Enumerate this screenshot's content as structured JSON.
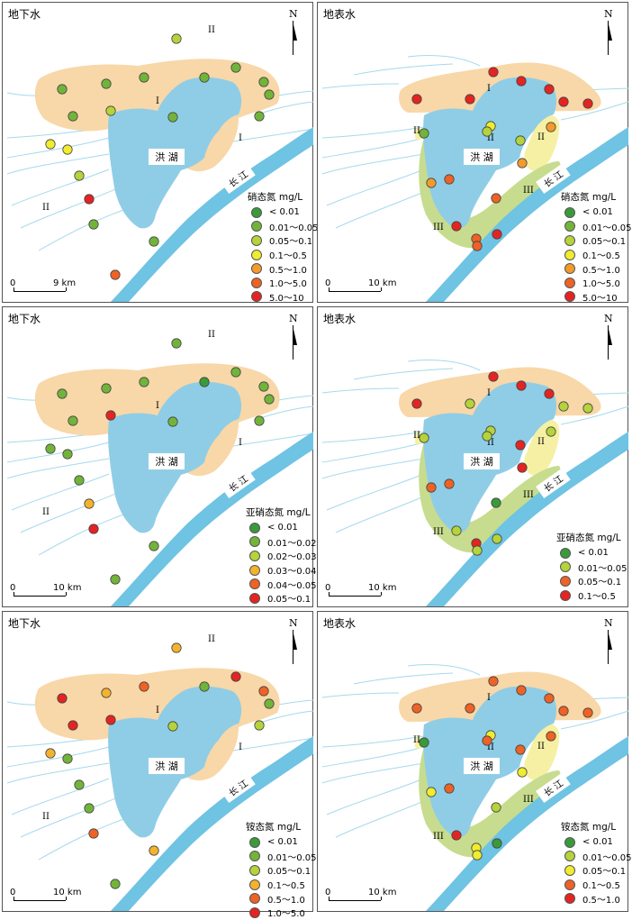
{
  "legend_sets": {
    "gw_nitrate": {
      "title": "硝态氮 mg/L",
      "items": [
        {
          "label": "< 0.01",
          "color": "#3a9a3a"
        },
        {
          "label": "0.01～0.05",
          "color": "#72b43a"
        },
        {
          "label": "0.05～0.1",
          "color": "#b5d33a"
        },
        {
          "label": "0.1～0.5",
          "color": "#f0ec2e"
        },
        {
          "label": "0.5～1.0",
          "color": "#f39a2c"
        },
        {
          "label": "1.0～5.0",
          "color": "#ee6225"
        },
        {
          "label": "5.0～10",
          "color": "#e32422"
        }
      ]
    },
    "gw_nitrite": {
      "title": "亚硝态氮 mg/L",
      "items": [
        {
          "label": "< 0.01",
          "color": "#3a9a3a"
        },
        {
          "label": "0.01～0.02",
          "color": "#72b43a"
        },
        {
          "label": "0.02～0.03",
          "color": "#b5d33a"
        },
        {
          "label": "0.03～0.04",
          "color": "#f3b32c"
        },
        {
          "label": "0.04～0.05",
          "color": "#ee6225"
        },
        {
          "label": "0.05～0.1",
          "color": "#e32422"
        }
      ]
    },
    "gw_ammonium": {
      "title": "铵态氮 mg/L",
      "items": [
        {
          "label": "< 0.01",
          "color": "#3a9a3a"
        },
        {
          "label": "0.01～0.05",
          "color": "#72b43a"
        },
        {
          "label": "0.05～0.1",
          "color": "#b5d33a"
        },
        {
          "label": "0.1～0.5",
          "color": "#f3b32c"
        },
        {
          "label": "0.5～1.0",
          "color": "#ee6225"
        },
        {
          "label": "1.0～5.0",
          "color": "#e32422"
        }
      ]
    },
    "sw_nitrite": {
      "title": "亚硝态氮 mg/L",
      "items": [
        {
          "label": "< 0.01",
          "color": "#3a9a3a"
        },
        {
          "label": "0.01～0.05",
          "color": "#b5d33a"
        },
        {
          "label": "0.05～0.1",
          "color": "#ee6225"
        },
        {
          "label": "0.1～0.5",
          "color": "#e32422"
        }
      ]
    },
    "sw_ammonium": {
      "title": "铵态氮 mg/L",
      "items": [
        {
          "label": "< 0.01",
          "color": "#3a9a3a"
        },
        {
          "label": "0.01～0.05",
          "color": "#b5d33a"
        },
        {
          "label": "0.05～0.1",
          "color": "#f0ec2e"
        },
        {
          "label": "0.1～0.5",
          "color": "#ee6225"
        },
        {
          "label": "0.5～1.0",
          "color": "#e32422"
        }
      ]
    }
  },
  "map_labels": {
    "lake": "洪 湖",
    "river": "长 江",
    "zone_1": "I",
    "zone_2": "II",
    "zone_3": "III",
    "north": "N",
    "scale_zero": "0"
  },
  "colors": {
    "lake": "#8fcde6",
    "river": "#6fc3e3",
    "zone_1": "#f8d7a8",
    "zone_2": "#f6f0a4",
    "zone_3": "#c7dc8e",
    "stream": "#a6d9ec"
  },
  "panels": [
    {
      "id": "gw-nitrate",
      "type": "groundwater",
      "title": "地下水",
      "legend": "gw_nitrate",
      "scale_label": "9 km",
      "points": [
        [
          0,
          2
        ],
        [
          1,
          1
        ],
        [
          2,
          1
        ],
        [
          3,
          1
        ],
        [
          4,
          1
        ],
        [
          5,
          1
        ],
        [
          6,
          1
        ],
        [
          7,
          1
        ],
        [
          8,
          2
        ],
        [
          9,
          1
        ],
        [
          10,
          1
        ],
        [
          11,
          1
        ],
        [
          12,
          3
        ],
        [
          13,
          3
        ],
        [
          14,
          2
        ],
        [
          15,
          6
        ],
        [
          16,
          1
        ],
        [
          17,
          1
        ],
        [
          18,
          5
        ]
      ]
    },
    {
      "id": "sw-nitrate",
      "type": "surface",
      "title": "地表水",
      "legend": "gw_nitrate",
      "scale_label": "10 km",
      "points": [
        [
          0,
          6
        ],
        [
          1,
          6
        ],
        [
          2,
          6
        ],
        [
          3,
          6
        ],
        [
          4,
          6
        ],
        [
          5,
          6
        ],
        [
          6,
          6
        ],
        [
          7,
          1
        ],
        [
          8,
          3
        ],
        [
          9,
          2
        ],
        [
          10,
          4
        ],
        [
          11,
          2
        ],
        [
          12,
          4
        ],
        [
          13,
          4
        ],
        [
          14,
          5
        ],
        [
          15,
          5
        ],
        [
          16,
          6
        ],
        [
          17,
          5
        ],
        [
          18,
          5
        ],
        [
          19,
          6
        ]
      ]
    },
    {
      "id": "gw-nitrite",
      "type": "groundwater",
      "title": "地下水",
      "legend": "gw_nitrite",
      "scale_label": "10 km",
      "points": [
        [
          0,
          1
        ],
        [
          1,
          1
        ],
        [
          2,
          1
        ],
        [
          3,
          0
        ],
        [
          4,
          1
        ],
        [
          5,
          1
        ],
        [
          6,
          1
        ],
        [
          7,
          1
        ],
        [
          8,
          5
        ],
        [
          9,
          1
        ],
        [
          10,
          1
        ],
        [
          11,
          1
        ],
        [
          12,
          1
        ],
        [
          13,
          1
        ],
        [
          14,
          1
        ],
        [
          15,
          3
        ],
        [
          16,
          5
        ],
        [
          17,
          1
        ],
        [
          18,
          1
        ]
      ]
    },
    {
      "id": "sw-nitrite",
      "type": "surface",
      "title": "地表水",
      "legend": "sw_nitrite",
      "scale_label": "10 km",
      "points": [
        [
          0,
          3
        ],
        [
          1,
          3
        ],
        [
          2,
          3
        ],
        [
          3,
          3
        ],
        [
          4,
          1
        ],
        [
          5,
          1
        ],
        [
          6,
          1
        ],
        [
          7,
          1
        ],
        [
          8,
          1
        ],
        [
          9,
          1
        ],
        [
          10,
          1
        ],
        [
          11,
          3
        ],
        [
          12,
          3
        ],
        [
          13,
          2
        ],
        [
          14,
          2
        ],
        [
          15,
          0
        ],
        [
          16,
          1
        ],
        [
          17,
          3
        ],
        [
          18,
          1
        ],
        [
          19,
          1
        ]
      ]
    },
    {
      "id": "gw-ammonium",
      "type": "groundwater",
      "title": "地下水",
      "legend": "gw_ammonium",
      "scale_label": "10 km",
      "points": [
        [
          0,
          3
        ],
        [
          1,
          3
        ],
        [
          2,
          4
        ],
        [
          3,
          1
        ],
        [
          4,
          5
        ],
        [
          5,
          4
        ],
        [
          6,
          1
        ],
        [
          7,
          5
        ],
        [
          8,
          5
        ],
        [
          9,
          2
        ],
        [
          10,
          5
        ],
        [
          11,
          2
        ],
        [
          12,
          3
        ],
        [
          13,
          1
        ],
        [
          14,
          1
        ],
        [
          15,
          1
        ],
        [
          16,
          4
        ],
        [
          17,
          3
        ],
        [
          18,
          1
        ]
      ]
    },
    {
      "id": "sw-ammonium",
      "type": "surface",
      "title": "地表水",
      "legend": "sw_ammonium",
      "scale_label": "10 km",
      "points": [
        [
          0,
          3
        ],
        [
          1,
          3
        ],
        [
          2,
          3
        ],
        [
          3,
          3
        ],
        [
          4,
          3
        ],
        [
          5,
          3
        ],
        [
          6,
          3
        ],
        [
          7,
          0
        ],
        [
          8,
          2
        ],
        [
          9,
          3
        ],
        [
          10,
          3
        ],
        [
          11,
          3
        ],
        [
          12,
          2
        ],
        [
          13,
          2
        ],
        [
          14,
          3
        ],
        [
          15,
          1
        ],
        [
          16,
          4
        ],
        [
          17,
          2
        ],
        [
          18,
          2
        ],
        [
          19,
          0
        ]
      ]
    }
  ]
}
